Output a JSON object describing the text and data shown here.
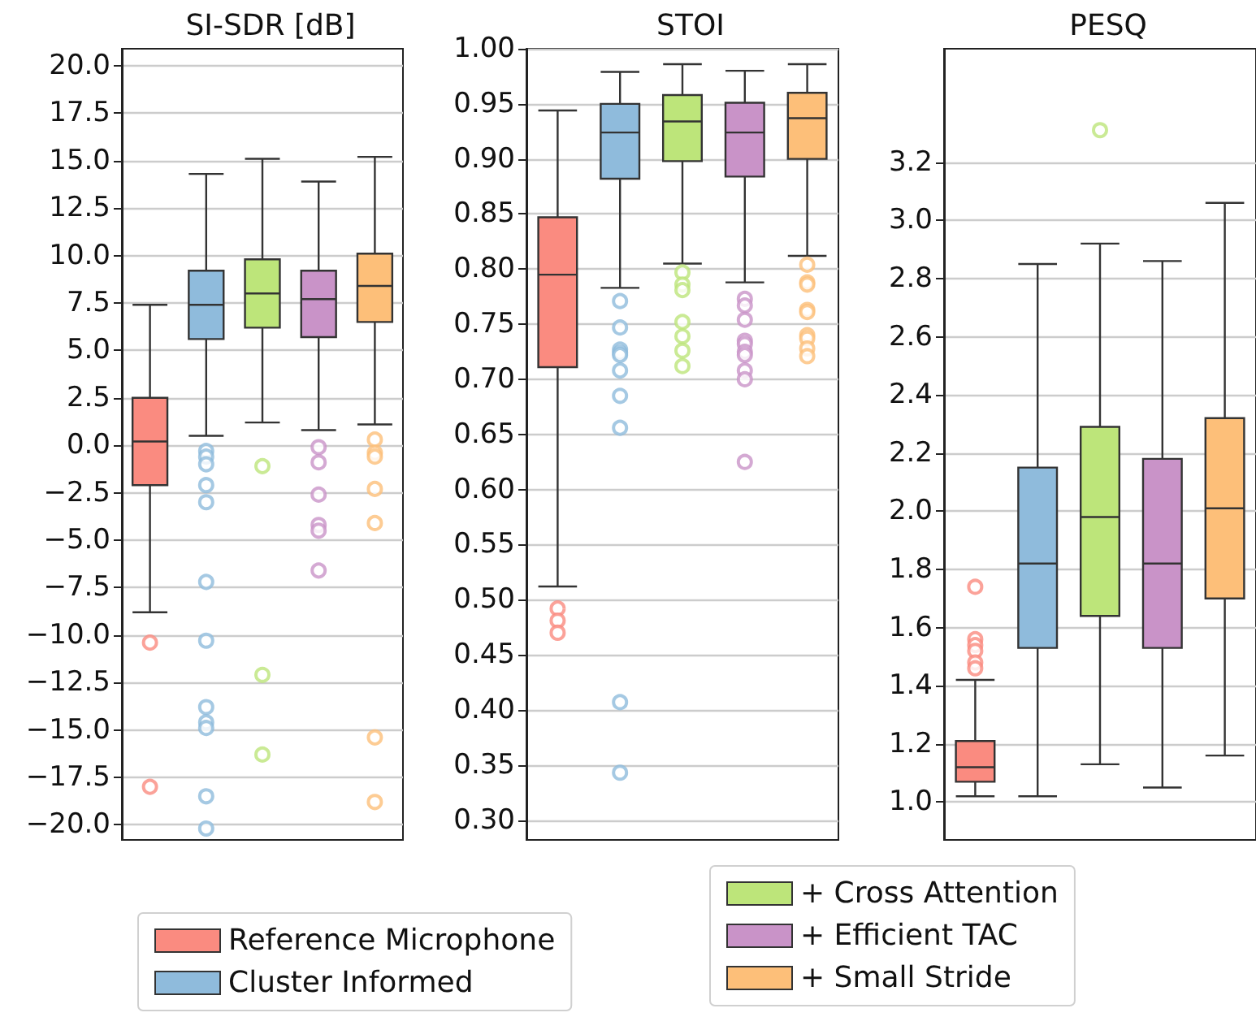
{
  "chart_data": [
    {
      "type": "box",
      "title": "SI-SDR [dB]",
      "categories": [
        null,
        null,
        null,
        null,
        null
      ],
      "ylim": [
        -20.8,
        20.9
      ],
      "yticks": [
        {
          "value": -20,
          "label": "−20.0"
        },
        {
          "value": -17.5,
          "label": "−17.5"
        },
        {
          "value": -15,
          "label": "−15.0"
        },
        {
          "value": -12.5,
          "label": "−12.5"
        },
        {
          "value": -10,
          "label": "−10.0"
        },
        {
          "value": -7.5,
          "label": "−7.5"
        },
        {
          "value": -5,
          "label": "−5.0"
        },
        {
          "value": -2.5,
          "label": "−2.5"
        },
        {
          "value": 0,
          "label": "0.0"
        },
        {
          "value": 2.5,
          "label": "2.5"
        },
        {
          "value": 5,
          "label": "5.0"
        },
        {
          "value": 7.5,
          "label": "7.5"
        },
        {
          "value": 10,
          "label": "10.0"
        },
        {
          "value": 12.5,
          "label": "12.5"
        },
        {
          "value": 15,
          "label": "15.0"
        },
        {
          "value": 17.5,
          "label": "17.5"
        },
        {
          "value": 20,
          "label": "20.0"
        }
      ],
      "grid": "y",
      "tick_labels": "y",
      "series": [
        {
          "color": "#fa8b80",
          "boxes": [
            {
              "low": -8.8,
              "q1": -2.1,
              "median": 0.2,
              "q3": 2.5,
              "high": 7.4,
              "outliers": [
                -10.4,
                -18.0
              ]
            },
            null,
            null,
            null,
            null
          ]
        },
        {
          "color": "#8fbbdc",
          "boxes": [
            null,
            {
              "low": 0.5,
              "q1": 5.6,
              "median": 7.4,
              "q3": 9.2,
              "high": 14.3,
              "outliers": [
                -0.3,
                -0.6,
                -1.0,
                -2.1,
                -3.0,
                -7.2,
                -10.3,
                -13.8,
                -14.6,
                -14.9,
                -18.5,
                -20.2
              ]
            },
            null,
            null,
            null
          ]
        },
        {
          "color": "#bde57a",
          "boxes": [
            null,
            null,
            {
              "low": 1.2,
              "q1": 6.2,
              "median": 8.0,
              "q3": 9.8,
              "high": 15.1,
              "outliers": [
                -1.1,
                -12.1,
                -16.3
              ]
            },
            null,
            null
          ]
        },
        {
          "color": "#c993c8",
          "boxes": [
            null,
            null,
            null,
            {
              "low": 0.8,
              "q1": 5.7,
              "median": 7.7,
              "q3": 9.2,
              "high": 13.9,
              "outliers": [
                -0.1,
                -0.9,
                -2.6,
                -4.2,
                -4.5,
                -6.6
              ]
            },
            null
          ]
        },
        {
          "color": "#fdbf79",
          "boxes": [
            null,
            null,
            null,
            null,
            {
              "low": 1.1,
              "q1": 6.5,
              "median": 8.4,
              "q3": 10.1,
              "high": 15.2,
              "outliers": [
                0.3,
                -0.4,
                -0.6,
                -2.3,
                -4.1,
                -15.4,
                -18.8
              ]
            }
          ]
        }
      ]
    },
    {
      "type": "box",
      "title": "STOI",
      "categories": [
        null,
        null,
        null,
        null,
        null
      ],
      "ylim": [
        0.282,
        1.0
      ],
      "yticks": [
        {
          "value": 0.3,
          "label": "0.30"
        },
        {
          "value": 0.35,
          "label": "0.35"
        },
        {
          "value": 0.4,
          "label": "0.40"
        },
        {
          "value": 0.45,
          "label": "0.45"
        },
        {
          "value": 0.5,
          "label": "0.50"
        },
        {
          "value": 0.55,
          "label": "0.55"
        },
        {
          "value": 0.6,
          "label": "0.60"
        },
        {
          "value": 0.65,
          "label": "0.65"
        },
        {
          "value": 0.7,
          "label": "0.70"
        },
        {
          "value": 0.75,
          "label": "0.75"
        },
        {
          "value": 0.8,
          "label": "0.80"
        },
        {
          "value": 0.85,
          "label": "0.85"
        },
        {
          "value": 0.9,
          "label": "0.90"
        },
        {
          "value": 0.95,
          "label": "0.95"
        },
        {
          "value": 1.0,
          "label": "1.00"
        }
      ],
      "grid": "y",
      "tick_labels": "y",
      "legend": "bottom",
      "series": [
        {
          "name": "Reference Microphone",
          "color": "#fa8b80",
          "boxes": [
            {
              "low": 0.512,
              "q1": 0.711,
              "median": 0.795,
              "q3": 0.847,
              "high": 0.944,
              "outliers": [
                0.492,
                0.481,
                0.47
              ]
            },
            null,
            null,
            null,
            null
          ]
        },
        {
          "name": "Cluster Informed",
          "color": "#8fbbdc",
          "boxes": [
            null,
            {
              "low": 0.783,
              "q1": 0.882,
              "median": 0.924,
              "q3": 0.95,
              "high": 0.979,
              "outliers": [
                0.771,
                0.747,
                0.727,
                0.724,
                0.722,
                0.708,
                0.685,
                0.656,
                0.407,
                0.343
              ]
            },
            null,
            null,
            null
          ]
        },
        {
          "name": "+ Cross Attention",
          "color": "#bde57a",
          "boxes": [
            null,
            null,
            {
              "low": 0.805,
              "q1": 0.898,
              "median": 0.934,
              "q3": 0.958,
              "high": 0.986,
              "outliers": [
                0.797,
                0.786,
                0.781,
                0.752,
                0.739,
                0.726,
                0.712
              ]
            },
            null,
            null
          ]
        },
        {
          "name": "+ Efficient TAC",
          "color": "#c993c8",
          "boxes": [
            null,
            null,
            null,
            {
              "low": 0.788,
              "q1": 0.884,
              "median": 0.924,
              "q3": 0.951,
              "high": 0.98,
              "outliers": [
                0.773,
                0.767,
                0.754,
                0.735,
                0.732,
                0.725,
                0.722,
                0.708,
                0.7,
                0.625
              ]
            },
            null
          ]
        },
        {
          "name": "+ Small Stride",
          "color": "#fdbf79",
          "boxes": [
            null,
            null,
            null,
            null,
            {
              "low": 0.812,
              "q1": 0.9,
              "median": 0.937,
              "q3": 0.96,
              "high": 0.986,
              "outliers": [
                0.804,
                0.788,
                0.786,
                0.763,
                0.761,
                0.74,
                0.737,
                0.728,
                0.721
              ]
            }
          ]
        }
      ]
    },
    {
      "type": "box",
      "title": "PESQ",
      "categories": [
        null,
        null,
        null,
        null,
        null
      ],
      "ylim": [
        0.87,
        3.59
      ],
      "yticks": [
        {
          "value": 1.0,
          "label": "1.0"
        },
        1.2,
        1.4,
        1.6,
        1.8,
        {
          "value": 2.0,
          "label": "2.0"
        },
        2.2,
        2.4,
        2.6,
        2.8,
        {
          "value": 3.0,
          "label": "3.0"
        },
        3.2
      ],
      "grid": "y",
      "tick_labels": "y",
      "series": [
        {
          "color": "#fa8b80",
          "boxes": [
            {
              "low": 1.02,
              "q1": 1.07,
              "median": 1.12,
              "q3": 1.21,
              "high": 1.42,
              "outliers": [
                1.74,
                1.56,
                1.54,
                1.52,
                1.48,
                1.46
              ]
            },
            null,
            null,
            null,
            null
          ]
        },
        {
          "color": "#8fbbdc",
          "boxes": [
            null,
            {
              "low": 1.02,
              "q1": 1.53,
              "median": 1.82,
              "q3": 2.15,
              "high": 2.85
            },
            null,
            null,
            null
          ]
        },
        {
          "color": "#bde57a",
          "boxes": [
            null,
            null,
            {
              "low": 1.13,
              "q1": 1.64,
              "median": 1.98,
              "q3": 2.29,
              "high": 2.92,
              "outliers": [
                3.31
              ]
            },
            null,
            null
          ]
        },
        {
          "color": "#c993c8",
          "boxes": [
            null,
            null,
            null,
            {
              "low": 1.05,
              "q1": 1.53,
              "median": 1.82,
              "q3": 2.18,
              "high": 2.86
            },
            null
          ]
        },
        {
          "color": "#fdbf79",
          "boxes": [
            null,
            null,
            null,
            null,
            {
              "low": 1.16,
              "q1": 1.7,
              "median": 2.01,
              "q3": 2.32,
              "high": 3.06
            }
          ]
        }
      ]
    }
  ]
}
